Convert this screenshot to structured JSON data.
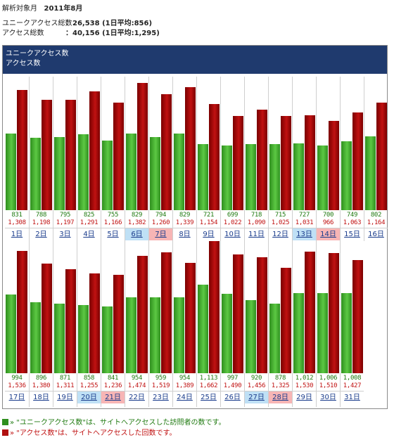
{
  "header": {
    "period_label": "解析対象月",
    "period_value": "2011年8月",
    "unique_label": "ユニークアクセス総数",
    "unique_value": "：26,538 (1日平均:856)",
    "access_label": "アクセス総数",
    "access_value": "：40,156 (1日平均:1,295)"
  },
  "banner": {
    "line1": "ユニークアクセス数",
    "line2": "アクセス数"
  },
  "colors": {
    "unique": "#3da82a",
    "access": "#b01010",
    "banner": "#1f3a6e",
    "saturday": "#bfe0f5",
    "sunday": "#f7b5b5"
  },
  "chart_data": {
    "type": "bar",
    "title": "",
    "series": [
      {
        "name": "ユニークアクセス数",
        "values": [
          831,
          788,
          795,
          825,
          755,
          829,
          794,
          829,
          721,
          699,
          718,
          715,
          727,
          700,
          749,
          802,
          994,
          896,
          871,
          858,
          841,
          954,
          959,
          954,
          1113,
          997,
          920,
          878,
          1012,
          1006,
          1008
        ]
      },
      {
        "name": "アクセス数",
        "values": [
          1308,
          1198,
          1197,
          1291,
          1166,
          1382,
          1260,
          1339,
          1154,
          1022,
          1090,
          1025,
          1031,
          966,
          1063,
          1164,
          1536,
          1380,
          1311,
          1255,
          1236,
          1474,
          1519,
          1389,
          1662,
          1490,
          1456,
          1325,
          1530,
          1510,
          1427
        ]
      }
    ],
    "unique_labels": [
      "831",
      "788",
      "795",
      "825",
      "755",
      "829",
      "794",
      "829",
      "721",
      "699",
      "718",
      "715",
      "727",
      "700",
      "749",
      "802",
      "994",
      "896",
      "871",
      "858",
      "841",
      "954",
      "959",
      "954",
      "1,113",
      "997",
      "920",
      "878",
      "1,012",
      "1,006",
      "1,008"
    ],
    "access_labels": [
      "1,308",
      "1,198",
      "1,197",
      "1,291",
      "1,166",
      "1,382",
      "1,260",
      "1,339",
      "1,154",
      "1,022",
      "1,090",
      "1,025",
      "1,031",
      "966",
      "1,063",
      "1,164",
      "1,536",
      "1,380",
      "1,311",
      "1,255",
      "1,236",
      "1,474",
      "1,519",
      "1,389",
      "1,662",
      "1,490",
      "1,456",
      "1,325",
      "1,530",
      "1,510",
      "1,427"
    ],
    "categories": [
      "1日",
      "2日",
      "3日",
      "4日",
      "5日",
      "6日",
      "7日",
      "8日",
      "9日",
      "10日",
      "11日",
      "12日",
      "13日",
      "14日",
      "15日",
      "16日",
      "17日",
      "18日",
      "19日",
      "20日",
      "21日",
      "22日",
      "23日",
      "24日",
      "25日",
      "26日",
      "27日",
      "28日",
      "29日",
      "30日",
      "31日"
    ],
    "saturdays": [
      6,
      13,
      20,
      27
    ],
    "sundays": [
      7,
      14,
      21,
      28
    ]
  },
  "legend": {
    "unique_text": "» \"ユニークアクセス数\"は、サイトへアクセスした訪問者の数です。",
    "access_text": "» \"アクセス数\"は、サイトへアクセスした回数です。"
  }
}
